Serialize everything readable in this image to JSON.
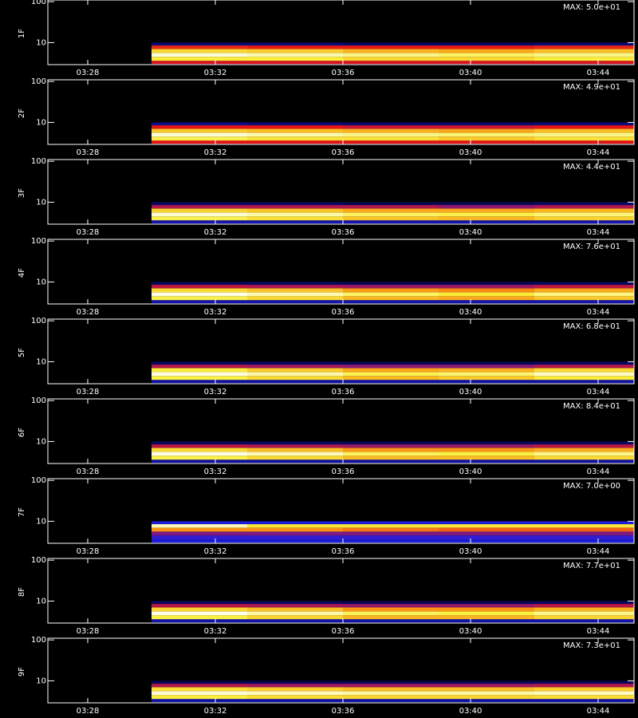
{
  "chart_data": [
    {
      "type": "heatmap",
      "ylabel": "1F",
      "annotation": {
        "value": 50,
        "label": "MAX: 5.0e+01"
      },
      "log_y": true,
      "x_edges": [
        210,
        213,
        216,
        219,
        222,
        225.125
      ],
      "y_edges": [
        3,
        3.6,
        4.5,
        5.6,
        7,
        8.5,
        10
      ],
      "z": [
        [
          22,
          22,
          22,
          22,
          22
        ],
        [
          40,
          40,
          38,
          38,
          40
        ],
        [
          48,
          46,
          44,
          42,
          44
        ],
        [
          38,
          37,
          35,
          34,
          36
        ],
        [
          24,
          23,
          23,
          23,
          24
        ],
        [
          8,
          8,
          7,
          7,
          8
        ]
      ],
      "xlim": [
        206.75,
        225.125
      ],
      "xticks": [
        {
          "value": 208,
          "label": "03:28"
        },
        {
          "value": 212,
          "label": "03:32"
        },
        {
          "value": 216,
          "label": "03:36"
        },
        {
          "value": 220,
          "label": "03:40"
        },
        {
          "value": 224,
          "label": "03:44"
        }
      ],
      "ylim": [
        2.9,
        110
      ],
      "yticks": [
        10,
        100
      ]
    },
    {
      "type": "heatmap",
      "ylabel": "2F",
      "annotation": {
        "value": 49,
        "label": "MAX: 4.9e+01"
      },
      "log_y": true,
      "x_edges": [
        210,
        213,
        216,
        219,
        222,
        225.125
      ],
      "y_edges": [
        3,
        3.6,
        4.5,
        5.6,
        7,
        8.5,
        10
      ],
      "z": [
        [
          22,
          22,
          22,
          22,
          22
        ],
        [
          40,
          38,
          38,
          36,
          38
        ],
        [
          47,
          45,
          43,
          42,
          43
        ],
        [
          36,
          35,
          34,
          33,
          35
        ],
        [
          22,
          22,
          21,
          21,
          22
        ],
        [
          9,
          8,
          7,
          7,
          8
        ]
      ],
      "xlim": [
        206.75,
        225.125
      ],
      "xticks": [
        {
          "value": 208,
          "label": "03:28"
        },
        {
          "value": 212,
          "label": "03:32"
        },
        {
          "value": 216,
          "label": "03:36"
        },
        {
          "value": 220,
          "label": "03:40"
        },
        {
          "value": 224,
          "label": "03:44"
        }
      ],
      "ylim": [
        2.9,
        110
      ],
      "yticks": [
        10,
        100
      ]
    },
    {
      "type": "heatmap",
      "ylabel": "3F",
      "annotation": {
        "value": 44,
        "label": "MAX: 4.4e+01"
      },
      "log_y": true,
      "x_edges": [
        210,
        213,
        216,
        219,
        222,
        225.125
      ],
      "y_edges": [
        3,
        3.6,
        4.5,
        5.6,
        7,
        8.5,
        10
      ],
      "z": [
        [
          10,
          10,
          10,
          10,
          10
        ],
        [
          36,
          34,
          32,
          31,
          33
        ],
        [
          42,
          40,
          37,
          36,
          38
        ],
        [
          33,
          32,
          30,
          30,
          31
        ],
        [
          18,
          18,
          18,
          17,
          18
        ],
        [
          6,
          6,
          5,
          5,
          6
        ]
      ],
      "xlim": [
        206.75,
        225.125
      ],
      "xticks": [
        {
          "value": 208,
          "label": "03:28"
        },
        {
          "value": 212,
          "label": "03:32"
        },
        {
          "value": 216,
          "label": "03:36"
        },
        {
          "value": 220,
          "label": "03:40"
        },
        {
          "value": 224,
          "label": "03:44"
        }
      ],
      "ylim": [
        2.9,
        110
      ],
      "yticks": [
        10,
        100
      ]
    },
    {
      "type": "heatmap",
      "ylabel": "4F",
      "annotation": {
        "value": 76,
        "label": "MAX: 7.6e+01"
      },
      "log_y": true,
      "x_edges": [
        210,
        213,
        216,
        219,
        222,
        225.125
      ],
      "y_edges": [
        3,
        3.6,
        4.5,
        5.6,
        7,
        8.5,
        10
      ],
      "z": [
        [
          17,
          17,
          17,
          17,
          17
        ],
        [
          62,
          58,
          54,
          52,
          56
        ],
        [
          74,
          70,
          64,
          60,
          66
        ],
        [
          58,
          55,
          50,
          48,
          52
        ],
        [
          32,
          31,
          30,
          30,
          32
        ],
        [
          10,
          10,
          9,
          9,
          10
        ]
      ],
      "xlim": [
        206.75,
        225.125
      ],
      "xticks": [
        {
          "value": 208,
          "label": "03:28"
        },
        {
          "value": 212,
          "label": "03:32"
        },
        {
          "value": 216,
          "label": "03:36"
        },
        {
          "value": 220,
          "label": "03:40"
        },
        {
          "value": 224,
          "label": "03:44"
        }
      ],
      "ylim": [
        2.9,
        110
      ],
      "yticks": [
        10,
        100
      ]
    },
    {
      "type": "heatmap",
      "ylabel": "5F",
      "annotation": {
        "value": 68,
        "label": "MAX: 6.8e+01"
      },
      "log_y": true,
      "x_edges": [
        210,
        213,
        216,
        219,
        222,
        225.125
      ],
      "y_edges": [
        3,
        3.6,
        4.5,
        5.6,
        7,
        8.5,
        10
      ],
      "z": [
        [
          15,
          15,
          15,
          15,
          15
        ],
        [
          55,
          52,
          48,
          50,
          54
        ],
        [
          66,
          62,
          56,
          58,
          64
        ],
        [
          54,
          50,
          46,
          47,
          52
        ],
        [
          28,
          27,
          26,
          26,
          28
        ],
        [
          9,
          9,
          8,
          8,
          9
        ]
      ],
      "xlim": [
        206.75,
        225.125
      ],
      "xticks": [
        {
          "value": 208,
          "label": "03:28"
        },
        {
          "value": 212,
          "label": "03:32"
        },
        {
          "value": 216,
          "label": "03:36"
        },
        {
          "value": 220,
          "label": "03:40"
        },
        {
          "value": 224,
          "label": "03:44"
        }
      ],
      "ylim": [
        2.9,
        110
      ],
      "yticks": [
        10,
        100
      ]
    },
    {
      "type": "heatmap",
      "ylabel": "6F",
      "annotation": {
        "value": 84,
        "label": "MAX: 8.4e+01"
      },
      "log_y": true,
      "x_edges": [
        210,
        213,
        216,
        219,
        222,
        225.125
      ],
      "y_edges": [
        3,
        3.6,
        4.5,
        5.6,
        7,
        8.5,
        10
      ],
      "z": [
        [
          18,
          18,
          18,
          18,
          18
        ],
        [
          68,
          64,
          60,
          60,
          64
        ],
        [
          82,
          78,
          70,
          68,
          74
        ],
        [
          64,
          60,
          55,
          55,
          58
        ],
        [
          35,
          34,
          33,
          33,
          35
        ],
        [
          11,
          11,
          10,
          10,
          11
        ]
      ],
      "xlim": [
        206.75,
        225.125
      ],
      "xticks": [
        {
          "value": 208,
          "label": "03:28"
        },
        {
          "value": 212,
          "label": "03:32"
        },
        {
          "value": 216,
          "label": "03:36"
        },
        {
          "value": 220,
          "label": "03:40"
        },
        {
          "value": 224,
          "label": "03:44"
        }
      ],
      "ylim": [
        2.9,
        110
      ],
      "yticks": [
        10,
        100
      ]
    },
    {
      "type": "heatmap",
      "ylabel": "7F",
      "annotation": {
        "value": 7,
        "label": "MAX: 7.0e+00"
      },
      "log_y": true,
      "x_edges": [
        210,
        213,
        216,
        219,
        222,
        225.125
      ],
      "y_edges": [
        3,
        3.6,
        4.5,
        5.6,
        7,
        8.5,
        10
      ],
      "z": [
        [
          2,
          2,
          2,
          2,
          2
        ],
        [
          2.2,
          2.2,
          2.2,
          2.2,
          2.2
        ],
        [
          2.6,
          2.6,
          2.6,
          2.6,
          2.6
        ],
        [
          4.5,
          4.5,
          4.2,
          4,
          4
        ],
        [
          6.5,
          5.5,
          5.5,
          5.5,
          5.5
        ],
        [
          2,
          2,
          2,
          2,
          2
        ]
      ],
      "xlim": [
        206.75,
        225.125
      ],
      "xticks": [
        {
          "value": 208,
          "label": "03:28"
        },
        {
          "value": 212,
          "label": "03:32"
        },
        {
          "value": 216,
          "label": "03:36"
        },
        {
          "value": 220,
          "label": "03:40"
        },
        {
          "value": 224,
          "label": "03:44"
        }
      ],
      "ylim": [
        2.9,
        110
      ],
      "yticks": [
        10,
        100
      ]
    },
    {
      "type": "heatmap",
      "ylabel": "8F",
      "annotation": {
        "value": 77,
        "label": "MAX: 7.7e+01"
      },
      "log_y": true,
      "x_edges": [
        210,
        213,
        216,
        219,
        222,
        225.125
      ],
      "y_edges": [
        3,
        3.6,
        4.5,
        5.6,
        7,
        8.5,
        10
      ],
      "z": [
        [
          17,
          17,
          17,
          17,
          17
        ],
        [
          62,
          58,
          54,
          54,
          58
        ],
        [
          75,
          70,
          64,
          62,
          68
        ],
        [
          58,
          55,
          50,
          50,
          54
        ],
        [
          32,
          31,
          30,
          30,
          32
        ],
        [
          10,
          10,
          9,
          9,
          10
        ]
      ],
      "xlim": [
        206.75,
        225.125
      ],
      "xticks": [
        {
          "value": 208,
          "label": "03:28"
        },
        {
          "value": 212,
          "label": "03:32"
        },
        {
          "value": 216,
          "label": "03:36"
        },
        {
          "value": 220,
          "label": "03:40"
        },
        {
          "value": 224,
          "label": "03:44"
        }
      ],
      "ylim": [
        2.9,
        110
      ],
      "yticks": [
        10,
        100
      ]
    },
    {
      "type": "heatmap",
      "ylabel": "9F",
      "annotation": {
        "value": 73,
        "label": "MAX: 7.3e+01"
      },
      "log_y": true,
      "x_edges": [
        210,
        213,
        216,
        219,
        222,
        225.125
      ],
      "y_edges": [
        3,
        3.6,
        4.5,
        5.6,
        7,
        8.5,
        10
      ],
      "z": [
        [
          16,
          16,
          16,
          16,
          16
        ],
        [
          58,
          56,
          55,
          55,
          56
        ],
        [
          70,
          68,
          66,
          66,
          68
        ],
        [
          56,
          54,
          52,
          52,
          54
        ],
        [
          30,
          29,
          29,
          29,
          30
        ],
        [
          9,
          9,
          9,
          9,
          9
        ]
      ],
      "xlim": [
        206.75,
        225.125
      ],
      "xticks": [
        {
          "value": 208,
          "label": "03:28"
        },
        {
          "value": 212,
          "label": "03:32"
        },
        {
          "value": 216,
          "label": "03:36"
        },
        {
          "value": 220,
          "label": "03:40"
        },
        {
          "value": 224,
          "label": "03:44"
        }
      ],
      "ylim": [
        2.9,
        110
      ],
      "yticks": [
        10,
        100
      ]
    }
  ]
}
